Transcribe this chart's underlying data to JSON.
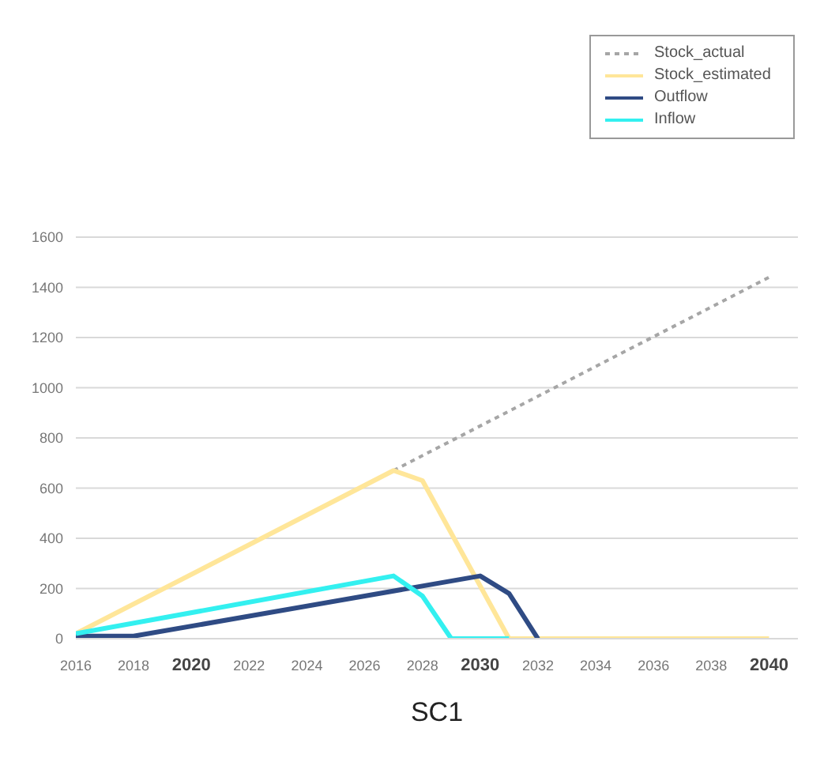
{
  "chart_data": {
    "type": "line",
    "xlabel": "SC1",
    "xlim": [
      2016,
      2041
    ],
    "xticks": [
      2016,
      2018,
      2020,
      2022,
      2024,
      2026,
      2028,
      2030,
      2032,
      2034,
      2036,
      2038,
      2040
    ],
    "ylim": [
      0,
      1600
    ],
    "yticks": [
      0,
      200,
      400,
      600,
      800,
      1000,
      1200,
      1400,
      1600
    ],
    "grid": "y",
    "legend": "top right",
    "marker": "none",
    "series": [
      {
        "name": "Stock_actual",
        "color": "#a6a6a6",
        "line_style": "dotted",
        "x": [
          2027,
          2040
        ],
        "values": [
          670,
          1440
        ]
      },
      {
        "name": "Stock_estimated",
        "color": "#ffe699",
        "x": [
          2016,
          2027,
          2028,
          2031,
          2040
        ],
        "values": [
          20,
          670,
          630,
          0,
          0
        ]
      },
      {
        "name": "Outflow",
        "color": "#2f4b84",
        "x": [
          2016,
          2018,
          2030,
          2031,
          2032
        ],
        "values": [
          10,
          10,
          250,
          180,
          0
        ]
      },
      {
        "name": "Inflow",
        "color": "#33f0f0",
        "x": [
          2016,
          2027,
          2028,
          2029,
          2031
        ],
        "values": [
          20,
          250,
          170,
          0,
          0
        ]
      }
    ]
  }
}
